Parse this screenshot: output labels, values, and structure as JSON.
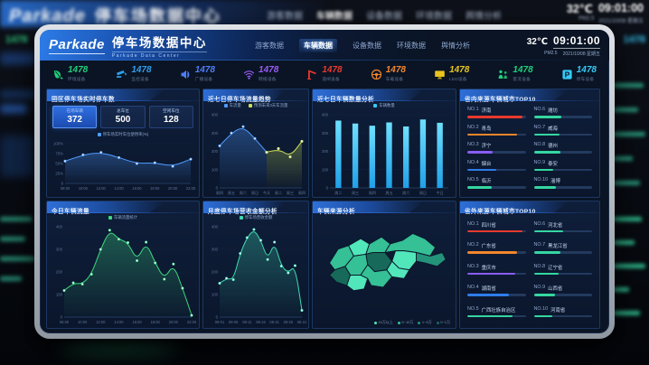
{
  "header": {
    "logo": "Parkade",
    "title": "停车场数据中心",
    "subtitle": "Parkade Data Center",
    "nav": [
      {
        "label": "游客数据",
        "active": false
      },
      {
        "label": "车辆数据",
        "active": true
      },
      {
        "label": "设备数据",
        "active": false
      },
      {
        "label": "环境数据",
        "active": false
      },
      {
        "label": "舆情分析",
        "active": false
      }
    ],
    "temperature": "32℃",
    "time": "09:01:00",
    "air": "PM2.5",
    "date": "2021/10/08 星期五"
  },
  "kpis": [
    {
      "label": "环境设备",
      "value": "1478",
      "color": "#1fcf7a",
      "icon": "leaf-icon"
    },
    {
      "label": "监控设备",
      "value": "1478",
      "color": "#2f9de8",
      "icon": "camera-icon"
    },
    {
      "label": "广播设备",
      "value": "1478",
      "color": "#4f7df9",
      "icon": "speaker-icon"
    },
    {
      "label": "网络设备",
      "value": "1478",
      "color": "#9a5cf6",
      "icon": "wifi-icon"
    },
    {
      "label": "道闸设备",
      "value": "1478",
      "color": "#e8392e",
      "icon": "barrier-icon"
    },
    {
      "label": "车载设备",
      "value": "1478",
      "color": "#f2862c",
      "icon": "steering-wheel-icon"
    },
    {
      "label": "LED设备",
      "value": "1478",
      "color": "#e8c41c",
      "icon": "led-screen-icon"
    },
    {
      "label": "客流设备",
      "value": "1478",
      "color": "#1fcf7a",
      "icon": "people-icon"
    },
    {
      "label": "停车设备",
      "value": "1478",
      "color": "#35c9f5",
      "icon": "parking-icon"
    }
  ],
  "panels": {
    "realtime": {
      "title": "园区停车场实时停车数",
      "stats": [
        {
          "label": "在场车辆",
          "value": "372",
          "highlight": true
        },
        {
          "label": "总车位",
          "value": "500",
          "highlight": false
        },
        {
          "label": "空闲车位",
          "value": "128",
          "highlight": false
        }
      ],
      "chart": {
        "type": "line",
        "legend": [
          {
            "label": "停车场实时车位使用率(%)",
            "color": "#4f9bff"
          }
        ],
        "yticks": [
          "100%",
          "75%",
          "50%",
          "25%",
          "0"
        ],
        "ymax": 100,
        "x": [
          "08:00",
          "10:00",
          "12:00",
          "14:00",
          "16:00",
          "18:00",
          "20:00",
          "22:00"
        ],
        "series": [
          {
            "name": "使用率",
            "values": [
              56,
              72,
              78,
              65,
              50,
              52,
              43,
              61
            ],
            "color": "#4f9bff"
          }
        ]
      }
    },
    "weekly_trend": {
      "title": "近七日停车场流量趋势",
      "chart": {
        "type": "line",
        "legend": [
          {
            "label": "车流量",
            "color": "#4f9bff"
          },
          {
            "label": "预测未来3天车流量",
            "color": "#cbe157"
          }
        ],
        "yticks": [
          "400",
          "300",
          "200",
          "100",
          "0"
        ],
        "ymax": 400,
        "x": [
          "周四",
          "周五",
          "周六",
          "周日",
          "今天",
          "周二",
          "周三",
          "周四"
        ],
        "series": [
          {
            "name": "车流量",
            "values": [
              230,
              300,
              335,
              270,
              195,
              null,
              null,
              null
            ],
            "color": "#4f9bff"
          },
          {
            "name": "预测未来3天车流量",
            "values": [
              null,
              null,
              null,
              null,
              195,
              215,
              170,
              255
            ],
            "color": "#cbe157"
          }
        ]
      }
    },
    "daily_count": {
      "title": "近七日车辆数量分析",
      "chart": {
        "type": "bar",
        "legend": [
          {
            "label": "车辆数量",
            "color": "#35c9f5"
          }
        ],
        "yticks": [
          "400",
          "300",
          "200",
          "100",
          "0"
        ],
        "ymax": 400,
        "x": [
          "周二",
          "周三",
          "周四",
          "周五",
          "周六",
          "周日",
          "今日"
        ],
        "values": [
          368,
          352,
          340,
          358,
          336,
          374,
          356
        ]
      }
    },
    "province_rank": {
      "title": "省内来源车辆城市TOP10",
      "items": [
        {
          "rank": "NO.1",
          "name": "济南",
          "pct": 95,
          "color": "#e8392e"
        },
        {
          "rank": "NO.2",
          "name": "青岛",
          "pct": 86,
          "color": "#f2862c"
        },
        {
          "rank": "NO.3",
          "name": "济宁",
          "pct": 44,
          "color": "#8a5cf6"
        },
        {
          "rank": "NO.4",
          "name": "烟台",
          "pct": 50,
          "color": "#2e7de9"
        },
        {
          "rank": "NO.5",
          "name": "临沂",
          "pct": 42,
          "color": "#35d6a0"
        },
        {
          "rank": "NO.6",
          "name": "潍坊",
          "pct": 48,
          "color": "#35d6a0"
        },
        {
          "rank": "NO.7",
          "name": "威海",
          "pct": 44,
          "color": "#35d6a0"
        },
        {
          "rank": "NO.8",
          "name": "德州",
          "pct": 46,
          "color": "#35d6a0"
        },
        {
          "rank": "NO.9",
          "name": "泰安",
          "pct": 34,
          "color": "#35d6a0"
        },
        {
          "rank": "NO.10",
          "name": "淄博",
          "pct": 38,
          "color": "#35d6a0"
        }
      ]
    },
    "today_flow": {
      "title": "今日车辆流量",
      "chart": {
        "type": "area",
        "legend": [
          {
            "label": "车辆流量统计",
            "color": "#3dd97e"
          }
        ],
        "yticks": [
          "400",
          "300",
          "200",
          "100",
          "0"
        ],
        "ymax": 400,
        "x": [
          "08:00",
          "10:00",
          "12:00",
          "14:00",
          "16:00",
          "18:00",
          "20:00",
          "22:00"
        ],
        "series": [
          {
            "name": "车辆流量",
            "values": [
              118,
              152,
              146,
              190,
              300,
              385,
              345,
              330,
              250,
              332,
              240,
              168,
              235,
              128,
              8
            ],
            "color": "#3dd97e"
          }
        ]
      }
    },
    "monthly_revenue": {
      "title": "月度停车场营收金额分析",
      "chart": {
        "type": "area",
        "legend": [
          {
            "label": "停车场营收金额",
            "color": "#3fd9b0"
          }
        ],
        "yticks": [
          "400",
          "300",
          "200",
          "100",
          "0"
        ],
        "ymax": 400,
        "x": [
          "08-01",
          "08-06",
          "08-11",
          "08-16",
          "08-21",
          "08-26",
          "08-31"
        ],
        "series": [
          {
            "name": "营收金额",
            "values": [
              150,
              172,
              166,
              282,
              352,
              388,
              340,
              255,
              332,
              226,
              196,
              228,
              30
            ],
            "color": "#3fd9b0"
          }
        ]
      }
    },
    "source_map": {
      "title": "车辆来源分析",
      "legend": [
        {
          "label": "10万以上",
          "color": "#52e6bb"
        },
        {
          "label": "5~10万",
          "color": "#35c096"
        },
        {
          "label": "1~5万",
          "color": "#23937a"
        },
        {
          "label": "0~1万",
          "color": "#17695a"
        }
      ]
    },
    "outside_rank": {
      "title": "省外来源车辆城市TOP10",
      "items": [
        {
          "rank": "NO.1",
          "name": "四川省",
          "pct": 95,
          "color": "#e8392e"
        },
        {
          "rank": "NO.2",
          "name": "广东省",
          "pct": 86,
          "color": "#f2862c"
        },
        {
          "rank": "NO.3",
          "name": "重庆市",
          "pct": 82,
          "color": "#8a5cf6"
        },
        {
          "rank": "NO.4",
          "name": "湖南省",
          "pct": 72,
          "color": "#2e7de9"
        },
        {
          "rank": "NO.5",
          "name": "广西壮族自治区",
          "pct": 78,
          "color": "#35d6a0"
        },
        {
          "rank": "NO.6",
          "name": "河北省",
          "pct": 50,
          "color": "#35d6a0"
        },
        {
          "rank": "NO.7",
          "name": "黑龙江省",
          "pct": 46,
          "color": "#35d6a0"
        },
        {
          "rank": "NO.8",
          "name": "辽宁省",
          "pct": 42,
          "color": "#35d6a0"
        },
        {
          "rank": "NO.9",
          "name": "山西省",
          "pct": 36,
          "color": "#35d6a0"
        },
        {
          "rank": "NO.10",
          "name": "河南省",
          "pct": 32,
          "color": "#35d6a0"
        }
      ]
    }
  }
}
